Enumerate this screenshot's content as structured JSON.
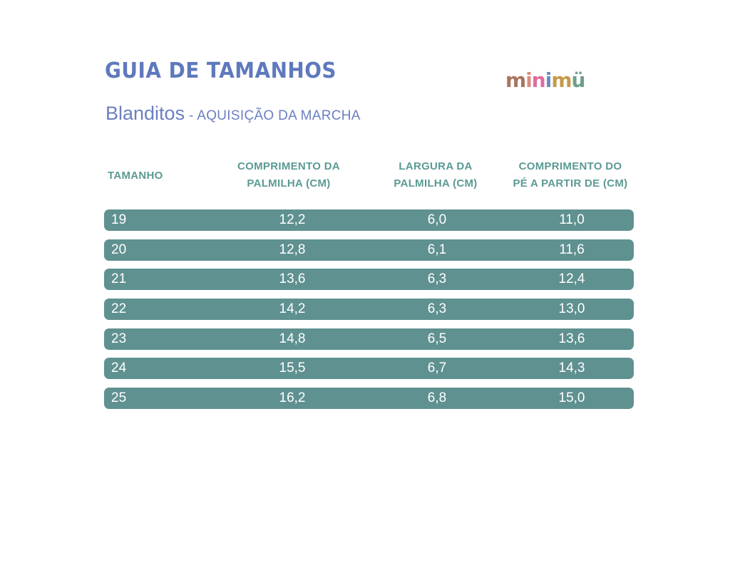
{
  "header": {
    "title": "GUIA DE TAMANHOS",
    "product_name": "Blanditos",
    "product_tag": "- AQUISIÇÃO DA MARCHA",
    "brand_logo_text": "minimü",
    "brand_colors": [
      "#a8745e",
      "#d88c7f",
      "#e16a9e",
      "#6b8bc3",
      "#c69a49",
      "#6f9e8a"
    ]
  },
  "table": {
    "columns": [
      {
        "line1": "TAMANHO",
        "line2": ""
      },
      {
        "line1": "COMPRIMENTO DA",
        "line2": "PALMILHA (CM)"
      },
      {
        "line1": "LARGURA DA",
        "line2": "PALMILHA (CM)"
      },
      {
        "line1": "COMPRIMENTO DO",
        "line2": "PÉ A PARTIR DE (CM)"
      }
    ],
    "rows": [
      [
        "19",
        "12,2",
        "6,0",
        "11,0"
      ],
      [
        "20",
        "12,8",
        "6,1",
        "11,6"
      ],
      [
        "21",
        "13,6",
        "6,3",
        "12,4"
      ],
      [
        "22",
        "14,2",
        "6,3",
        "13,0"
      ],
      [
        "23",
        "14,8",
        "6,5",
        "13,6"
      ],
      [
        "24",
        "15,5",
        "6,7",
        "14,3"
      ],
      [
        "25",
        "16,2",
        "6,8",
        "15,0"
      ]
    ],
    "row_color": "#5f9190",
    "header_color": "#5b9a94"
  }
}
